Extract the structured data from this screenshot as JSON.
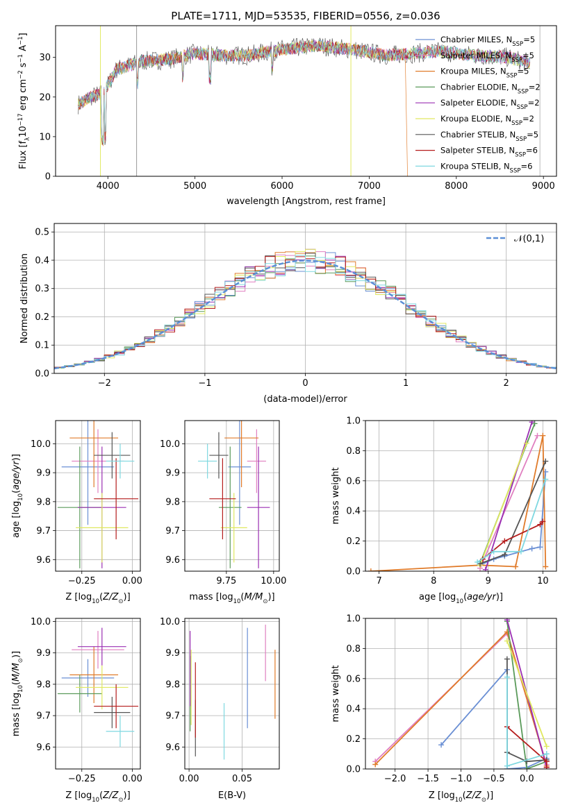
{
  "figure_title": "PLATE=1711, MJD=53535, FIBERID=0556, z=0.036",
  "legend": [
    {
      "label": "Chabrier MILES, N_SSP=5",
      "color": "#6a8fd4"
    },
    {
      "label": "Salpeter MILES, N_SSP=5",
      "color": "#e07fc0"
    },
    {
      "label": "Kroupa MILES, N_SSP=5",
      "color": "#e07b2a"
    },
    {
      "label": "Chabrier ELODIE, N_SSP=2",
      "color": "#5a9a5a"
    },
    {
      "label": "Salpeter ELODIE, N_SSP=2",
      "color": "#9a2fb2"
    },
    {
      "label": "Kroupa ELODIE, N_SSP=2",
      "color": "#e0e860"
    },
    {
      "label": "Chabrier STELIB, N_SSP=5",
      "color": "#555555"
    },
    {
      "label": "Salpeter STELIB, N_SSP=6",
      "color": "#b51c1c"
    },
    {
      "label": "Kroupa STELIB, N_SSP=6",
      "color": "#7fd8e0"
    }
  ],
  "chart_data": [
    {
      "id": "spectrum",
      "type": "line",
      "xlabel": "wavelength [Angstrom, rest frame]",
      "ylabel": "Flux [f_λ 10^-17 erg cm^-2 s^-1 A^-1]",
      "xlim": [
        3400,
        9150
      ],
      "ylim": [
        0,
        38
      ],
      "xticks": [
        4000,
        5000,
        6000,
        7000,
        8000,
        9000
      ],
      "yticks": [
        0,
        10,
        20,
        30
      ],
      "grid": false,
      "legend_position": "top-right",
      "continuum_x": [
        3650,
        3800,
        3950,
        4100,
        4400,
        4700,
        5000,
        5300,
        5600,
        6000,
        6400,
        6800,
        7200,
        7500,
        7800,
        8200,
        8600,
        8850
      ],
      "continuum_y": [
        18,
        20,
        21,
        27,
        29,
        29.5,
        31,
        30.5,
        30.5,
        32,
        33,
        32,
        30.5,
        31,
        31.5,
        30.5,
        30,
        28.5
      ]
    },
    {
      "id": "residuals",
      "type": "histogram",
      "xlabel": "(data-model)/error",
      "ylabel": "Normed distribution",
      "xlim": [
        -2.5,
        2.5
      ],
      "ylim": [
        0,
        0.53
      ],
      "xticks": [
        -2,
        -1,
        0,
        1,
        2
      ],
      "yticks": [
        0.0,
        0.1,
        0.2,
        0.3,
        0.4,
        0.5
      ],
      "grid": true,
      "legend_position": "top-right",
      "reference_curve": {
        "name": "𝒩(0,1)",
        "mean": 0,
        "sigma": 1,
        "color": "#5b8fd6"
      }
    },
    {
      "id": "age_vs_Z",
      "type": "scatter",
      "xlabel": "Z [log10(Z/Z⊙)]",
      "ylabel": "age [log10(age/yr)]",
      "xlim": [
        -0.38,
        0.04
      ],
      "ylim": [
        9.56,
        10.08
      ],
      "xticks": [
        -0.25,
        0.0
      ],
      "yticks": [
        9.6,
        9.7,
        9.8,
        9.9,
        10.0
      ],
      "grid": true,
      "points": [
        {
          "x": -0.22,
          "y": 9.92,
          "xerr": 0.13,
          "yerr": 0.2,
          "color": "#6a8fd4"
        },
        {
          "x": -0.17,
          "y": 9.94,
          "xerr": 0.13,
          "yerr": 0.11,
          "color": "#e07fc0"
        },
        {
          "x": -0.19,
          "y": 10.02,
          "xerr": 0.12,
          "yerr": 0.17,
          "color": "#e07b2a"
        },
        {
          "x": -0.26,
          "y": 9.78,
          "xerr": 0.11,
          "yerr": 0.21,
          "color": "#5a9a5a"
        },
        {
          "x": -0.15,
          "y": 9.78,
          "xerr": 0.12,
          "yerr": 0.21,
          "color": "#9a2fb2"
        },
        {
          "x": -0.15,
          "y": 9.71,
          "xerr": 0.13,
          "yerr": 0.12,
          "color": "#e0e860"
        },
        {
          "x": -0.1,
          "y": 9.96,
          "xerr": 0.09,
          "yerr": 0.08,
          "color": "#555555"
        },
        {
          "x": -0.08,
          "y": 9.81,
          "xerr": 0.11,
          "yerr": 0.14,
          "color": "#b51c1c"
        },
        {
          "x": -0.06,
          "y": 9.94,
          "xerr": 0.07,
          "yerr": 0.06,
          "color": "#7fd8e0"
        }
      ]
    },
    {
      "id": "age_vs_mass",
      "type": "scatter",
      "xlabel": "mass [log10(M/M⊙)]",
      "ylabel": "",
      "xlim": [
        9.53,
        10.03
      ],
      "ylim": [
        9.56,
        10.08
      ],
      "xticks": [
        9.75,
        10.0
      ],
      "yticks": [
        9.6,
        9.7,
        9.8,
        9.9,
        10.0
      ],
      "grid": true,
      "points": [
        {
          "x": 9.82,
          "y": 9.92,
          "xerr": 0.06,
          "yerr": 0.2,
          "color": "#6a8fd4"
        },
        {
          "x": 9.91,
          "y": 9.94,
          "xerr": 0.05,
          "yerr": 0.11,
          "color": "#e07fc0"
        },
        {
          "x": 9.83,
          "y": 10.02,
          "xerr": 0.09,
          "yerr": 0.17,
          "color": "#e07b2a"
        },
        {
          "x": 9.77,
          "y": 9.78,
          "xerr": 0.06,
          "yerr": 0.21,
          "color": "#5a9a5a"
        },
        {
          "x": 9.92,
          "y": 9.78,
          "xerr": 0.06,
          "yerr": 0.21,
          "color": "#9a2fb2"
        },
        {
          "x": 9.79,
          "y": 9.71,
          "xerr": 0.07,
          "yerr": 0.12,
          "color": "#e0e860"
        },
        {
          "x": 9.71,
          "y": 9.96,
          "xerr": 0.05,
          "yerr": 0.08,
          "color": "#555555"
        },
        {
          "x": 9.73,
          "y": 9.81,
          "xerr": 0.07,
          "yerr": 0.14,
          "color": "#b51c1c"
        },
        {
          "x": 9.65,
          "y": 9.94,
          "xerr": 0.05,
          "yerr": 0.06,
          "color": "#7fd8e0"
        }
      ]
    },
    {
      "id": "weight_vs_age",
      "type": "line",
      "xlabel": "age [log10(age/yr)]",
      "ylabel": "mass weight",
      "xlim": [
        6.75,
        10.25
      ],
      "ylim": [
        0,
        1.0
      ],
      "xticks": [
        7,
        8,
        9,
        10
      ],
      "yticks": [
        0.0,
        0.2,
        0.4,
        0.6,
        0.8,
        1.0
      ],
      "grid": true,
      "series": [
        {
          "color": "#6a8fd4",
          "x": [
            8.85,
            9.1,
            9.3,
            9.8,
            9.95,
            10.05
          ],
          "y": [
            0.04,
            0.08,
            0.1,
            0.15,
            0.16,
            0.66
          ]
        },
        {
          "color": "#e07fc0",
          "x": [
            8.85,
            9.9
          ],
          "y": [
            0.02,
            0.9
          ]
        },
        {
          "color": "#e07b2a",
          "x": [
            6.85,
            8.85,
            9.5,
            10.0,
            10.05
          ],
          "y": [
            0.0,
            0.04,
            0.03,
            0.9,
            0.03
          ]
        },
        {
          "color": "#5a9a5a",
          "x": [
            8.85,
            9.85
          ],
          "y": [
            0.05,
            0.98
          ]
        },
        {
          "color": "#9a2fb2",
          "x": [
            8.95,
            9.8
          ],
          "y": [
            0.01,
            0.99
          ]
        },
        {
          "color": "#e0e860",
          "x": [
            8.85,
            9.7
          ],
          "y": [
            0.04,
            0.85
          ]
        },
        {
          "color": "#555555",
          "x": [
            8.85,
            9.3,
            10.05
          ],
          "y": [
            0.05,
            0.11,
            0.73
          ]
        },
        {
          "color": "#b51c1c",
          "x": [
            8.9,
            9.3,
            9.95,
            10.0
          ],
          "y": [
            0.08,
            0.2,
            0.31,
            0.33
          ]
        },
        {
          "color": "#7fd8e0",
          "x": [
            8.8,
            9.1,
            9.6,
            10.05
          ],
          "y": [
            0.06,
            0.13,
            0.13,
            0.61
          ]
        }
      ]
    },
    {
      "id": "mass_vs_Z",
      "type": "scatter",
      "xlabel": "Z [log10(Z/Z⊙)]",
      "ylabel": "mass [log10(M/M⊙)]",
      "xlim": [
        -0.38,
        0.04
      ],
      "ylim": [
        9.53,
        10.01
      ],
      "xticks": [
        -0.25,
        0.0
      ],
      "yticks": [
        9.6,
        9.7,
        9.8,
        9.9,
        10.0
      ],
      "grid": true,
      "points": [
        {
          "x": -0.22,
          "y": 9.82,
          "xerr": 0.13,
          "yerr": 0.06,
          "color": "#6a8fd4"
        },
        {
          "x": -0.17,
          "y": 9.91,
          "xerr": 0.13,
          "yerr": 0.06,
          "color": "#e07fc0"
        },
        {
          "x": -0.19,
          "y": 9.83,
          "xerr": 0.12,
          "yerr": 0.09,
          "color": "#e07b2a"
        },
        {
          "x": -0.26,
          "y": 9.77,
          "xerr": 0.11,
          "yerr": 0.06,
          "color": "#5a9a5a"
        },
        {
          "x": -0.15,
          "y": 9.92,
          "xerr": 0.12,
          "yerr": 0.06,
          "color": "#9a2fb2"
        },
        {
          "x": -0.15,
          "y": 9.79,
          "xerr": 0.13,
          "yerr": 0.07,
          "color": "#e0e860"
        },
        {
          "x": -0.1,
          "y": 9.71,
          "xerr": 0.09,
          "yerr": 0.05,
          "color": "#555555"
        },
        {
          "x": -0.08,
          "y": 9.73,
          "xerr": 0.11,
          "yerr": 0.07,
          "color": "#b51c1c"
        },
        {
          "x": -0.06,
          "y": 9.65,
          "xerr": 0.07,
          "yerr": 0.05,
          "color": "#7fd8e0"
        }
      ]
    },
    {
      "id": "mass_vs_ebv",
      "type": "scatter",
      "xlabel": "E(B-V)",
      "ylabel": "",
      "xlim": [
        -0.004,
        0.085
      ],
      "ylim": [
        9.53,
        10.01
      ],
      "xticks": [
        0.0,
        0.05
      ],
      "yticks": [
        9.6,
        9.7,
        9.8,
        9.9,
        10.0
      ],
      "grid": true,
      "points": [
        {
          "x": 0.055,
          "y": 9.82,
          "yerr": 0.16,
          "color": "#6a8fd4"
        },
        {
          "x": 0.072,
          "y": 9.9,
          "yerr": 0.09,
          "color": "#e07fc0"
        },
        {
          "x": 0.081,
          "y": 9.8,
          "yerr": 0.11,
          "color": "#e07b2a"
        },
        {
          "x": 0.001,
          "y": 9.77,
          "yerr": 0.12,
          "color": "#5a9a5a"
        },
        {
          "x": 0.001,
          "y": 9.85,
          "yerr": 0.12,
          "color": "#9a2fb2"
        },
        {
          "x": 0.002,
          "y": 9.79,
          "yerr": 0.12,
          "color": "#e0e860"
        },
        {
          "x": 0.006,
          "y": 9.66,
          "yerr": 0.09,
          "color": "#555555"
        },
        {
          "x": 0.006,
          "y": 9.75,
          "yerr": 0.12,
          "color": "#b51c1c"
        },
        {
          "x": 0.033,
          "y": 9.65,
          "yerr": 0.09,
          "color": "#7fd8e0"
        }
      ]
    },
    {
      "id": "weight_vs_Z",
      "type": "line",
      "xlabel": "Z [log10(Z/Z⊙)]",
      "ylabel": "mass weight",
      "xlim": [
        -2.45,
        0.45
      ],
      "ylim": [
        0,
        1.0
      ],
      "xticks": [
        -2.0,
        -1.5,
        -1.0,
        -0.5,
        0.0
      ],
      "yticks": [
        0.0,
        0.2,
        0.4,
        0.6,
        0.8,
        1.0
      ],
      "grid": true,
      "series": [
        {
          "color": "#6a8fd4",
          "x": [
            -1.3,
            -0.3,
            -0.3,
            0.0,
            0.3,
            0.3
          ],
          "y": [
            0.16,
            0.66,
            0.0,
            0.01,
            0.07,
            0.1
          ]
        },
        {
          "color": "#e07fc0",
          "x": [
            -2.3,
            -0.3,
            0.3
          ],
          "y": [
            0.05,
            0.9,
            0.03
          ]
        },
        {
          "color": "#e07b2a",
          "x": [
            -2.3,
            -0.3,
            0.3
          ],
          "y": [
            0.03,
            0.91,
            0.02
          ]
        },
        {
          "color": "#5a9a5a",
          "x": [
            -0.3,
            0.0,
            0.3
          ],
          "y": [
            0.98,
            0.0,
            0.05
          ]
        },
        {
          "color": "#9a2fb2",
          "x": [
            -0.3,
            0.3
          ],
          "y": [
            0.99,
            0.01
          ]
        },
        {
          "color": "#e0e860",
          "x": [
            -0.3,
            0.3
          ],
          "y": [
            0.85,
            0.15
          ]
        },
        {
          "color": "#555555",
          "x": [
            -0.3,
            -0.3,
            0.0,
            0.3
          ],
          "y": [
            0.73,
            0.11,
            0.05,
            0.06
          ]
        },
        {
          "color": "#b51c1c",
          "x": [
            -0.3,
            0.3,
            0.3
          ],
          "y": [
            0.28,
            0.05,
            0.01
          ]
        },
        {
          "color": "#7fd8e0",
          "x": [
            -0.3,
            -0.3,
            0.3
          ],
          "y": [
            0.61,
            0.02,
            0.1
          ]
        }
      ]
    }
  ]
}
